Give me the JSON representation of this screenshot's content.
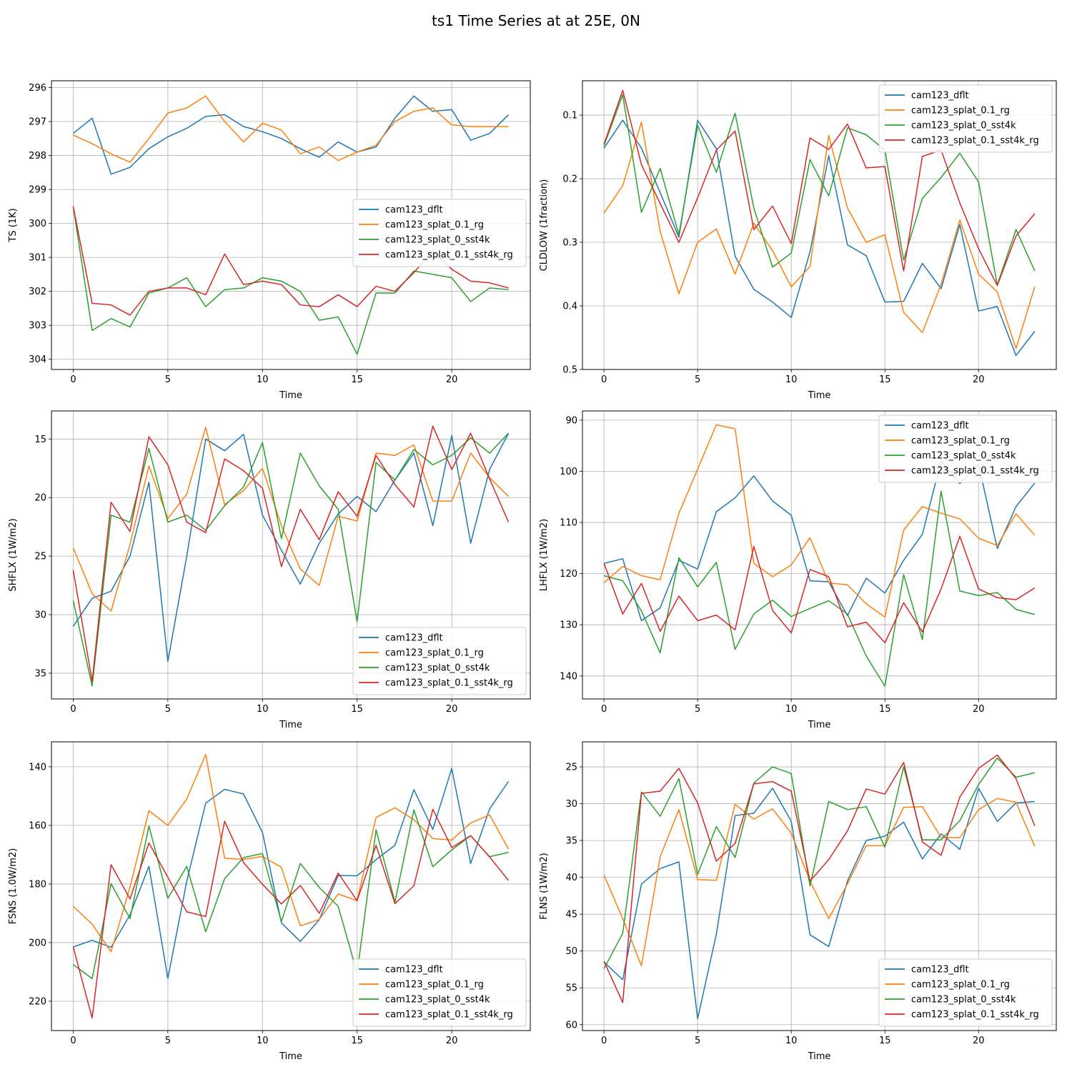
{
  "figure": {
    "title": "ts1 Time Series at at 25E, 0N",
    "colors": {
      "cam123_dflt": "#1f77b4",
      "cam123_splat_0.1_rg": "#ff7f0e",
      "cam123_splat_0_sst4k": "#2ca02c",
      "cam123_splat_0.1_sst4k_rg": "#d62728"
    }
  },
  "chart_data": [
    {
      "type": "line",
      "id": "ts",
      "xlabel": "Time",
      "ylabel": "TS (1K)",
      "xlim": [
        -1.15,
        24.15
      ],
      "ylim": [
        304.3,
        295.8
      ],
      "xticks": [
        0,
        5,
        10,
        15,
        20
      ],
      "yticks": [
        296,
        297,
        298,
        299,
        300,
        301,
        302,
        303,
        304
      ],
      "legend": "center-right",
      "grid": true,
      "x": [
        0,
        1,
        2,
        3,
        4,
        5,
        6,
        7,
        8,
        9,
        10,
        11,
        12,
        13,
        14,
        15,
        16,
        17,
        18,
        19,
        20,
        21,
        22,
        23
      ],
      "series": [
        {
          "name": "cam123_dflt",
          "values": [
            297.35,
            296.9,
            298.55,
            298.35,
            297.8,
            297.45,
            297.2,
            296.85,
            296.8,
            297.15,
            297.3,
            297.5,
            297.8,
            298.05,
            297.6,
            297.9,
            297.75,
            296.9,
            296.25,
            296.7,
            296.65,
            297.55,
            297.35,
            296.8
          ]
        },
        {
          "name": "cam123_splat_0.1_rg",
          "values": [
            297.4,
            297.65,
            297.95,
            298.2,
            297.5,
            296.75,
            296.6,
            296.25,
            297.0,
            297.6,
            297.05,
            297.25,
            297.95,
            297.75,
            298.15,
            297.9,
            297.7,
            297.0,
            296.7,
            296.6,
            297.1,
            297.15,
            297.15,
            297.15
          ]
        },
        {
          "name": "cam123_splat_0_sst4k",
          "values": [
            299.5,
            303.15,
            302.8,
            303.05,
            302.05,
            301.9,
            301.6,
            302.45,
            301.95,
            301.9,
            301.6,
            301.7,
            302.0,
            302.85,
            302.75,
            303.85,
            302.05,
            302.05,
            301.4,
            301.5,
            301.6,
            302.3,
            301.9,
            301.95
          ]
        },
        {
          "name": "cam123_splat_0.1_sst4k_rg",
          "values": [
            299.5,
            302.35,
            302.4,
            302.7,
            302.0,
            301.9,
            301.9,
            302.1,
            300.9,
            301.8,
            301.7,
            301.8,
            302.4,
            302.45,
            302.1,
            302.45,
            301.85,
            302.0,
            301.45,
            300.8,
            301.35,
            301.7,
            301.75,
            301.9
          ]
        }
      ]
    },
    {
      "type": "line",
      "id": "cldlow",
      "xlabel": "Time",
      "ylabel": "CLDLOW (1fraction)",
      "xlim": [
        -1.15,
        24.15
      ],
      "ylim": [
        0.5,
        0.046
      ],
      "xticks": [
        0,
        5,
        10,
        15,
        20
      ],
      "yticks": [
        0.1,
        0.2,
        0.3,
        0.4,
        0.5
      ],
      "legend": "top-right",
      "grid": true,
      "x": [
        0,
        1,
        2,
        3,
        4,
        5,
        6,
        7,
        8,
        9,
        10,
        11,
        12,
        13,
        14,
        15,
        16,
        17,
        18,
        19,
        20,
        21,
        22,
        23
      ],
      "series": [
        {
          "name": "cam123_dflt",
          "values": [
            0.152,
            0.108,
            0.152,
            0.222,
            0.292,
            0.108,
            0.153,
            0.322,
            0.374,
            0.394,
            0.418,
            0.315,
            0.164,
            0.304,
            0.321,
            0.394,
            0.393,
            0.333,
            0.373,
            0.272,
            0.408,
            0.401,
            0.478,
            0.44
          ]
        },
        {
          "name": "cam123_splat_0.1_rg",
          "values": [
            0.254,
            0.211,
            0.111,
            0.283,
            0.381,
            0.3,
            0.279,
            0.35,
            0.27,
            0.313,
            0.37,
            0.338,
            0.132,
            0.246,
            0.3,
            0.288,
            0.41,
            0.442,
            0.366,
            0.265,
            0.35,
            0.378,
            0.467,
            0.37
          ]
        },
        {
          "name": "cam123_splat_0_sst4k",
          "values": [
            0.148,
            0.068,
            0.253,
            0.184,
            0.288,
            0.116,
            0.19,
            0.097,
            0.246,
            0.339,
            0.317,
            0.17,
            0.227,
            0.12,
            0.131,
            0.155,
            0.328,
            0.231,
            0.198,
            0.16,
            0.205,
            0.367,
            0.28,
            0.345
          ]
        },
        {
          "name": "cam123_splat_0.1_sst4k_rg",
          "values": [
            0.146,
            0.061,
            0.178,
            0.239,
            0.3,
            0.23,
            0.155,
            0.125,
            0.28,
            0.243,
            0.302,
            0.136,
            0.154,
            0.114,
            0.183,
            0.181,
            0.345,
            0.165,
            0.155,
            0.238,
            0.31,
            0.368,
            0.29,
            0.255
          ]
        }
      ]
    },
    {
      "type": "line",
      "id": "shflx",
      "xlabel": "Time",
      "ylabel": "SHFLX (1W/m2)",
      "xlim": [
        -1.15,
        24.15
      ],
      "ylim": [
        37.2,
        12.6
      ],
      "xticks": [
        0,
        5,
        10,
        15,
        20
      ],
      "yticks": [
        15,
        20,
        25,
        30,
        35
      ],
      "legend": "bottom-right",
      "grid": true,
      "x": [
        0,
        1,
        2,
        3,
        4,
        5,
        6,
        7,
        8,
        9,
        10,
        11,
        12,
        13,
        14,
        15,
        16,
        17,
        18,
        19,
        20,
        21,
        22,
        23
      ],
      "series": [
        {
          "name": "cam123_dflt",
          "values": [
            31.0,
            28.6,
            28.0,
            25.0,
            18.7,
            34.0,
            25.0,
            15.0,
            16.0,
            14.6,
            21.5,
            24.5,
            27.4,
            23.9,
            21.4,
            19.9,
            21.2,
            18.5,
            16.2,
            22.4,
            14.7,
            23.9,
            17.6,
            14.5
          ]
        },
        {
          "name": "cam123_splat_0.1_rg",
          "values": [
            24.3,
            28.2,
            29.7,
            24.0,
            17.3,
            21.8,
            19.7,
            14.0,
            20.6,
            19.4,
            17.5,
            22.4,
            26.1,
            27.5,
            21.6,
            22.0,
            16.2,
            16.4,
            15.5,
            20.3,
            20.3,
            16.2,
            18.3,
            19.9
          ]
        },
        {
          "name": "cam123_splat_0_sst4k",
          "values": [
            28.8,
            36.1,
            21.5,
            22.1,
            15.8,
            22.1,
            21.5,
            22.8,
            20.7,
            19.1,
            15.3,
            23.5,
            16.2,
            19.0,
            21.0,
            30.6,
            17.0,
            18.5,
            15.9,
            17.2,
            16.4,
            14.9,
            16.2,
            14.5
          ]
        },
        {
          "name": "cam123_splat_0.1_sst4k_rg",
          "values": [
            26.2,
            35.7,
            20.4,
            22.9,
            14.8,
            17.2,
            22.1,
            23.0,
            16.7,
            17.7,
            19.2,
            25.9,
            21.0,
            23.6,
            19.5,
            21.6,
            16.4,
            18.9,
            20.8,
            13.9,
            17.6,
            14.5,
            18.4,
            22.1
          ]
        }
      ]
    },
    {
      "type": "line",
      "id": "lhflx",
      "xlabel": "Time",
      "ylabel": "LHFLX (1W/m2)",
      "xlim": [
        -1.15,
        24.15
      ],
      "ylim": [
        144.5,
        88.2
      ],
      "xticks": [
        0,
        5,
        10,
        15,
        20
      ],
      "yticks": [
        90,
        100,
        110,
        120,
        130,
        140
      ],
      "legend": "top-right",
      "grid": true,
      "x": [
        0,
        1,
        2,
        3,
        4,
        5,
        6,
        7,
        8,
        9,
        10,
        11,
        12,
        13,
        14,
        15,
        16,
        17,
        18,
        19,
        20,
        21,
        22,
        23
      ],
      "series": [
        {
          "name": "cam123_dflt",
          "values": [
            118.0,
            117.1,
            129.2,
            126.7,
            117.4,
            119.1,
            107.9,
            105.2,
            100.9,
            105.8,
            108.6,
            121.4,
            121.6,
            128.2,
            120.9,
            123.8,
            117.4,
            112.3,
            98.0,
            102.4,
            98.6,
            115.1,
            106.9,
            102.3
          ]
        },
        {
          "name": "cam123_splat_0.1_rg",
          "values": [
            121.8,
            118.6,
            120.4,
            121.2,
            108.2,
            99.6,
            90.9,
            91.7,
            118.0,
            120.6,
            118.3,
            113.0,
            121.8,
            122.2,
            125.9,
            128.5,
            111.5,
            106.9,
            108.2,
            109.3,
            113.1,
            114.5,
            108.3,
            112.5
          ]
        },
        {
          "name": "cam123_splat_0_sst4k",
          "values": [
            120.4,
            121.4,
            127.3,
            135.5,
            116.9,
            122.6,
            117.8,
            134.8,
            127.9,
            125.2,
            128.4,
            126.8,
            125.3,
            127.9,
            136.1,
            142.0,
            120.2,
            132.9,
            103.9,
            123.4,
            124.3,
            123.7,
            127.0,
            128.0
          ]
        },
        {
          "name": "cam123_splat_0.1_sst4k_rg",
          "values": [
            118.0,
            127.9,
            121.9,
            131.3,
            124.4,
            129.2,
            128.1,
            131.0,
            114.7,
            127.2,
            131.6,
            119.2,
            120.6,
            130.4,
            129.5,
            133.5,
            125.7,
            131.4,
            123.0,
            112.7,
            123.0,
            124.7,
            125.1,
            122.8
          ]
        }
      ]
    },
    {
      "type": "line",
      "id": "fsns",
      "xlabel": "Time",
      "ylabel": "FSNS (1.0W/m2)",
      "xlim": [
        -1.15,
        24.15
      ],
      "ylim": [
        230.0,
        131.5
      ],
      "xticks": [
        0,
        5,
        10,
        15,
        20
      ],
      "yticks": [
        140,
        160,
        180,
        200,
        220
      ],
      "legend": "bottom-right",
      "grid": true,
      "x": [
        0,
        1,
        2,
        3,
        4,
        5,
        6,
        7,
        8,
        9,
        10,
        11,
        12,
        13,
        14,
        15,
        16,
        17,
        18,
        19,
        20,
        21,
        22,
        23
      ],
      "series": [
        {
          "name": "cam123_dflt",
          "values": [
            201.5,
            199.2,
            201.6,
            190.5,
            174.0,
            212.2,
            179.0,
            152.4,
            147.7,
            149.3,
            162.4,
            193.3,
            199.6,
            192.2,
            177.1,
            177.2,
            171.7,
            166.8,
            147.8,
            161.4,
            140.6,
            173.0,
            154.4,
            145.0
          ]
        },
        {
          "name": "cam123_splat_0.1_rg",
          "values": [
            187.6,
            193.7,
            203.1,
            181.1,
            155.0,
            160.0,
            151.0,
            135.8,
            171.2,
            171.6,
            170.6,
            174.3,
            194.3,
            192.1,
            183.4,
            185.7,
            157.3,
            154.0,
            158.1,
            164.5,
            165.0,
            159.2,
            156.4,
            168.1
          ]
        },
        {
          "name": "cam123_splat_0_sst4k",
          "values": [
            207.5,
            212.3,
            179.9,
            191.8,
            160.2,
            184.9,
            174.0,
            196.3,
            178.2,
            171.0,
            169.6,
            192.8,
            173.0,
            181.2,
            187.6,
            210.4,
            161.5,
            186.2,
            154.7,
            174.1,
            168.4,
            163.5,
            170.7,
            169.2
          ]
        },
        {
          "name": "cam123_splat_0.1_sst4k_rg",
          "values": [
            201.5,
            225.7,
            173.4,
            185.1,
            166.0,
            177.7,
            189.5,
            191.1,
            158.6,
            172.7,
            180.1,
            186.8,
            180.5,
            190.0,
            176.3,
            185.7,
            166.8,
            186.7,
            180.6,
            154.5,
            167.6,
            163.5,
            170.8,
            178.8
          ]
        }
      ]
    },
    {
      "type": "line",
      "id": "flns",
      "xlabel": "Time",
      "ylabel": "FLNS (1W/m2)",
      "xlim": [
        -1.15,
        24.15
      ],
      "ylim": [
        60.8,
        21.6
      ],
      "xticks": [
        0,
        5,
        10,
        15,
        20
      ],
      "yticks": [
        25,
        30,
        35,
        40,
        45,
        50,
        55,
        60
      ],
      "legend": "bottom-right",
      "grid": true,
      "x": [
        0,
        1,
        2,
        3,
        4,
        5,
        6,
        7,
        8,
        9,
        10,
        11,
        12,
        13,
        14,
        15,
        16,
        17,
        18,
        19,
        20,
        21,
        22,
        23
      ],
      "series": [
        {
          "name": "cam123_dflt",
          "values": [
            51.5,
            53.9,
            40.9,
            38.8,
            37.9,
            59.2,
            47.7,
            31.6,
            31.3,
            27.9,
            32.4,
            47.8,
            49.4,
            40.5,
            35.0,
            34.4,
            32.5,
            37.5,
            34.1,
            36.2,
            27.9,
            32.4,
            29.9,
            29.7
          ]
        },
        {
          "name": "cam123_splat_0.1_rg",
          "values": [
            39.7,
            45.6,
            52.0,
            37.2,
            30.8,
            40.3,
            40.4,
            30.1,
            32.1,
            30.7,
            34.0,
            40.5,
            45.6,
            40.9,
            35.7,
            35.7,
            30.5,
            30.4,
            34.6,
            34.6,
            30.8,
            29.3,
            29.8,
            35.8
          ]
        },
        {
          "name": "cam123_splat_0_sst4k",
          "values": [
            52.4,
            47.6,
            28.4,
            31.7,
            26.6,
            39.6,
            33.1,
            37.3,
            27.2,
            25.0,
            25.9,
            41.2,
            29.7,
            30.8,
            30.4,
            35.9,
            25.0,
            34.9,
            34.9,
            32.3,
            27.4,
            23.8,
            26.4,
            25.8
          ]
        },
        {
          "name": "cam123_splat_0.1_sst4k_rg",
          "values": [
            51.4,
            57.0,
            28.6,
            28.3,
            25.2,
            29.9,
            37.8,
            35.4,
            27.3,
            27.0,
            28.3,
            40.5,
            37.6,
            33.7,
            28.0,
            28.7,
            24.4,
            35.2,
            37.0,
            29.1,
            25.2,
            23.4,
            26.6,
            33.0
          ]
        }
      ]
    }
  ]
}
